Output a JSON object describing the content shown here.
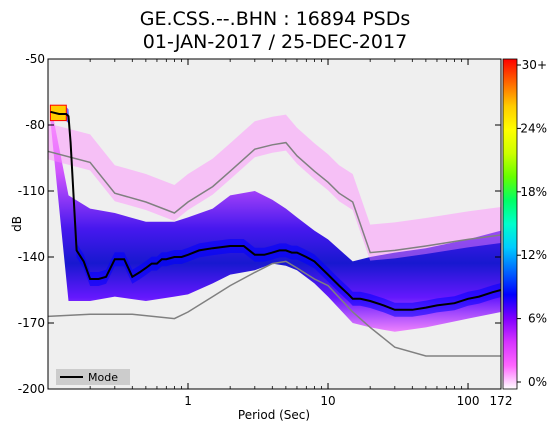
{
  "chart_data": {
    "type": "heatmap",
    "title_line1": "GE.CSS.--.BHN : 16894 PSDs",
    "title_line2": "01-JAN-2017 / 25-DEC-2017",
    "xlabel": "Period (Sec)",
    "ylabel": "dB",
    "x_scale": "log",
    "xlim": [
      0.1,
      172
    ],
    "ylim": [
      -200,
      -50
    ],
    "x_ticks": [
      {
        "value": 1,
        "label": "1"
      },
      {
        "value": 10,
        "label": "10"
      },
      {
        "value": 100,
        "label": "100"
      },
      {
        "value": 172,
        "label": "172"
      }
    ],
    "y_ticks": [
      {
        "value": -50,
        "label": "-50"
      },
      {
        "value": -80,
        "label": "-80"
      },
      {
        "value": -110,
        "label": "-110"
      },
      {
        "value": -140,
        "label": "-140"
      },
      {
        "value": -170,
        "label": "-170"
      },
      {
        "value": -200,
        "label": "-200"
      }
    ],
    "colorbar": {
      "ticks": [
        "0%",
        "6%",
        "12%",
        "18%",
        "24%",
        "30+"
      ],
      "colors": [
        "#ffffff",
        "#ff66ff",
        "#d633ff",
        "#8000ff",
        "#0000ff",
        "#0066ff",
        "#00ccff",
        "#00ffcc",
        "#00ff66",
        "#66ff00",
        "#ccff00",
        "#ffff00",
        "#ffcc00",
        "#ff6600",
        "#ff0000"
      ]
    },
    "legend": [
      {
        "name": "Mode",
        "color": "#000000"
      }
    ],
    "mode": {
      "x": [
        0.104,
        0.12,
        0.135,
        0.14,
        0.145,
        0.16,
        0.18,
        0.2,
        0.23,
        0.26,
        0.3,
        0.35,
        0.4,
        0.45,
        0.5,
        0.55,
        0.6,
        0.65,
        0.7,
        0.8,
        0.9,
        1.0,
        1.2,
        1.5,
        2.0,
        2.5,
        3.0,
        3.5,
        4.0,
        4.5,
        5.0,
        5.5,
        6.0,
        7.0,
        8.0,
        10,
        12,
        14,
        15,
        17,
        20,
        25,
        30,
        40,
        50,
        60,
        80,
        100,
        120,
        150,
        172
      ],
      "y": [
        -74,
        -75,
        -75,
        -76,
        -88,
        -137,
        -142,
        -150,
        -150,
        -149,
        -141,
        -141,
        -149,
        -147,
        -145,
        -143,
        -143,
        -141,
        -141,
        -140,
        -140,
        -139,
        -137,
        -136,
        -135,
        -135,
        -139,
        -139,
        -138,
        -137,
        -137,
        -138,
        -138,
        -140,
        -142,
        -148,
        -153,
        -157,
        -159,
        -159,
        -160,
        -162,
        -164,
        -164,
        -163,
        -162,
        -161,
        -159,
        -158,
        -156,
        -155
      ]
    },
    "percentile_low": {
      "x": [
        0.1,
        0.2,
        0.4,
        0.8,
        1.0,
        1.5,
        2.0,
        3.0,
        4.0,
        5.0,
        6.0,
        8.0,
        10,
        15,
        20,
        30,
        50,
        100,
        172
      ],
      "y": [
        -167,
        -166,
        -166,
        -168,
        -165,
        -158,
        -153,
        -147,
        -143,
        -142,
        -145,
        -150,
        -153,
        -165,
        -172,
        -181,
        -185,
        -185,
        -185
      ]
    },
    "percentile_high": {
      "x": [
        0.1,
        0.2,
        0.3,
        0.5,
        0.8,
        1.0,
        1.5,
        2.0,
        3.0,
        4.0,
        5.0,
        6.0,
        8.0,
        10,
        12,
        15,
        20,
        30,
        50,
        100,
        172
      ],
      "y": [
        -92,
        -97,
        -111,
        -115,
        -120,
        -115,
        -108,
        -101,
        -91,
        -89,
        -88,
        -94,
        -101,
        -106,
        -111,
        -115,
        -138,
        -137,
        -135,
        -132,
        -130
      ]
    },
    "density_band": {
      "x": [
        0.104,
        0.14,
        0.2,
        0.3,
        0.5,
        0.8,
        1.0,
        1.5,
        2.0,
        3.0,
        4.0,
        5.0,
        6.0,
        8.0,
        10,
        15,
        20,
        30,
        50,
        100,
        172
      ],
      "upper": [
        -70,
        -112,
        -118,
        -120,
        -124,
        -124,
        -122,
        -118,
        -112,
        -110,
        -114,
        -118,
        -122,
        -128,
        -132,
        -142,
        -140,
        -138,
        -136,
        -132,
        -128
      ],
      "lower": [
        -78,
        -160,
        -160,
        -158,
        -160,
        -158,
        -157,
        -152,
        -148,
        -146,
        -143,
        -144,
        -146,
        -152,
        -158,
        -170,
        -172,
        -174,
        -172,
        -168,
        -165
      ]
    }
  }
}
